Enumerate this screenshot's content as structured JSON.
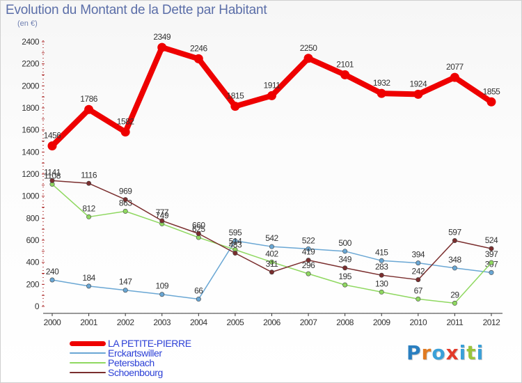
{
  "header": {
    "title": "Evolution du Montant de la Dette par Habitant",
    "subtitle": "(en €)"
  },
  "logo": {
    "text": "Proxiti",
    "letter_colors": [
      "#2a7fc0",
      "#e07a22",
      "#3aa0d8",
      "#e23a2a",
      "#3aa0d8",
      "#9ac43c",
      "#3aa0d8"
    ]
  },
  "chart_data": {
    "type": "line",
    "title": "Evolution du Montant de la Dette par Habitant",
    "ylabel": "(en €)",
    "xlabel": "",
    "categories": [
      "2000",
      "2001",
      "2002",
      "2003",
      "2004",
      "2005",
      "2006",
      "2007",
      "2008",
      "2009",
      "2010",
      "2011",
      "2012"
    ],
    "yticks": [
      "0",
      "200",
      "400",
      "600",
      "800",
      "1000",
      "1200",
      "1400",
      "1600",
      "1800",
      "2000",
      "2200",
      "2400"
    ],
    "ylim": [
      0,
      2400
    ],
    "grid": false,
    "legend_position": "bottom-left",
    "series": [
      {
        "name": "LA PETITE-PIERRE",
        "color": "#ee0000",
        "values": [
          1456,
          1786,
          1582,
          2349,
          2246,
          1815,
          1911,
          2250,
          2101,
          1932,
          1924,
          2077,
          1855
        ],
        "labels": [
          "1456",
          "1786",
          "1582",
          "2349",
          "2246",
          "1815",
          "1911",
          "2250",
          "2101",
          "1932",
          "1924",
          "2077",
          "1855"
        ]
      },
      {
        "name": "Erckartswiller",
        "color": "#6aa7d4",
        "values": [
          240,
          184,
          147,
          109,
          66,
          595,
          542,
          522,
          500,
          415,
          394,
          348,
          307
        ],
        "labels": [
          "240",
          "184",
          "147",
          "109",
          "66",
          "595",
          "542",
          "522",
          "500",
          "415",
          "394",
          "348",
          "307"
        ]
      },
      {
        "name": "Petersbach",
        "color": "#8fd860",
        "values": [
          1108,
          812,
          863,
          749,
          625,
          514,
          402,
          296,
          195,
          130,
          67,
          29,
          397
        ],
        "labels": [
          "1108",
          "812",
          "863",
          "749",
          "625",
          "514",
          "402",
          "296",
          "195",
          "130",
          "67",
          "29",
          "397"
        ]
      },
      {
        "name": "Schoenbourg",
        "color": "#7a2e2e",
        "values": [
          1141,
          1116,
          969,
          777,
          660,
          483,
          311,
          419,
          349,
          283,
          242,
          597,
          524
        ],
        "labels": [
          "1141",
          "1116",
          "969",
          "777",
          "660",
          "483",
          "311",
          "419",
          "349",
          "283",
          "242",
          "597",
          "524"
        ]
      }
    ]
  }
}
